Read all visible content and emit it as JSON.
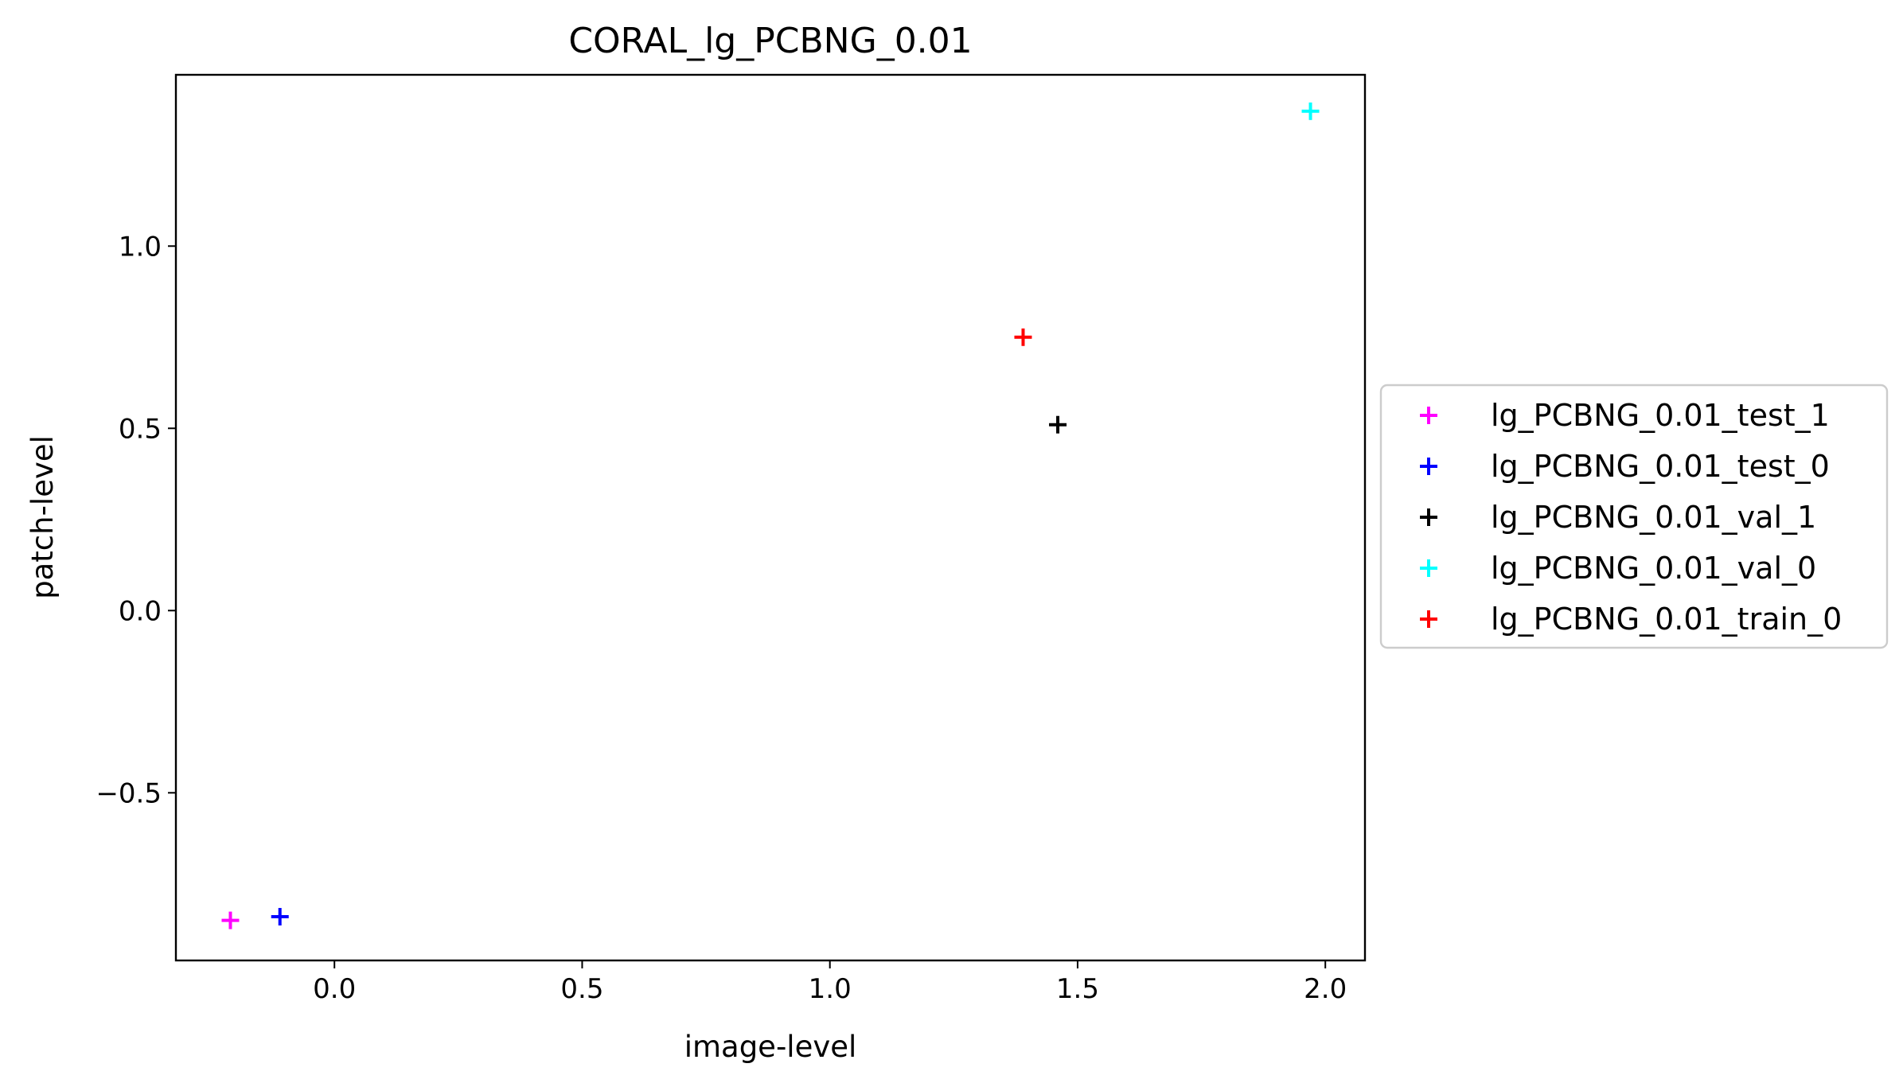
{
  "chart_data": {
    "type": "scatter",
    "title": "CORAL_lg_PCBNG_0.01",
    "xlabel": "image-level",
    "ylabel": "patch-level",
    "xlim": [
      -0.32,
      2.08
    ],
    "ylim": [
      -0.96,
      1.47
    ],
    "xticks": [
      0.0,
      0.5,
      1.0,
      1.5,
      2.0
    ],
    "xtick_labels": [
      "0.0",
      "0.5",
      "1.0",
      "1.5",
      "2.0"
    ],
    "yticks": [
      -0.5,
      0.0,
      0.5,
      1.0
    ],
    "ytick_labels": [
      "−0.5",
      "0.0",
      "0.5",
      "1.0"
    ],
    "grid": false,
    "marker": "+",
    "legend_position": "outside-right",
    "series": [
      {
        "name": "lg_PCBNG_0.01_test_1",
        "color": "#ff00ff",
        "points": [
          {
            "x": -0.21,
            "y": -0.85
          }
        ]
      },
      {
        "name": "lg_PCBNG_0.01_test_0",
        "color": "#0000ff",
        "points": [
          {
            "x": -0.11,
            "y": -0.84
          }
        ]
      },
      {
        "name": "lg_PCBNG_0.01_val_1",
        "color": "#000000",
        "points": [
          {
            "x": 1.46,
            "y": 0.51
          }
        ]
      },
      {
        "name": "lg_PCBNG_0.01_val_0",
        "color": "#00ffff",
        "points": [
          {
            "x": 1.97,
            "y": 1.37
          }
        ]
      },
      {
        "name": "lg_PCBNG_0.01_train_0",
        "color": "#ff0000",
        "points": [
          {
            "x": 1.39,
            "y": 0.75
          }
        ]
      }
    ]
  }
}
